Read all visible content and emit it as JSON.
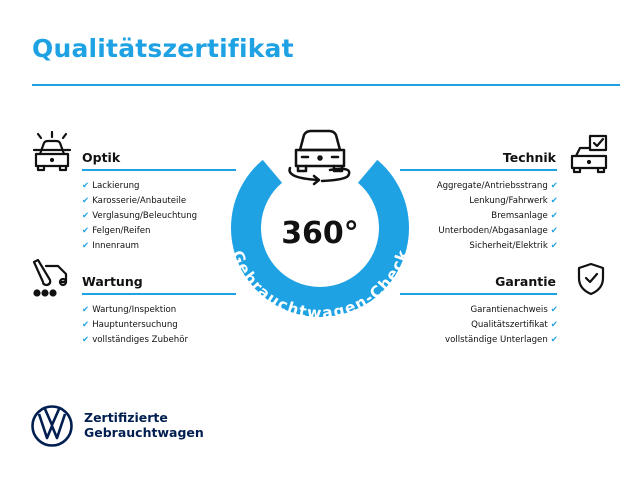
{
  "title": "Qualitätszertifikat",
  "center": {
    "big_text": "360°",
    "ring_text": "Gebrauchtwagen-Check",
    "ring_color": "#1ea2e3"
  },
  "sections": {
    "optik": {
      "title": "Optik",
      "icon": "car-lights-icon",
      "items": [
        "Lackierung",
        "Karosserie/Anbauteile",
        "Verglasung/Beleuchtung",
        "Felgen/Reifen",
        "Innenraum"
      ]
    },
    "wartung": {
      "title": "Wartung",
      "icon": "service-tools-icon",
      "items": [
        "Wartung/Inspektion",
        "Hauptuntersuchung",
        "vollständiges Zubehör"
      ]
    },
    "technik": {
      "title": "Technik",
      "icon": "car-checklist-icon",
      "items": [
        "Aggregate/Antriebsstrang",
        "Lenkung/Fahrwerk",
        "Bremsanlage",
        "Unterboden/Abgasanlage",
        "Sicherheit/Elektrik"
      ]
    },
    "garantie": {
      "title": "Garantie",
      "icon": "shield-check-icon",
      "items": [
        "Garantienachweis",
        "Qualitätszertifikat",
        "vollständige Unterlagen"
      ]
    }
  },
  "footer": {
    "line1": "Zertifizierte",
    "line2": "Gebrauchtwagen",
    "logo": "vw-logo"
  },
  "colors": {
    "accent": "#1ea2e3",
    "brand_dark": "#001e50"
  }
}
